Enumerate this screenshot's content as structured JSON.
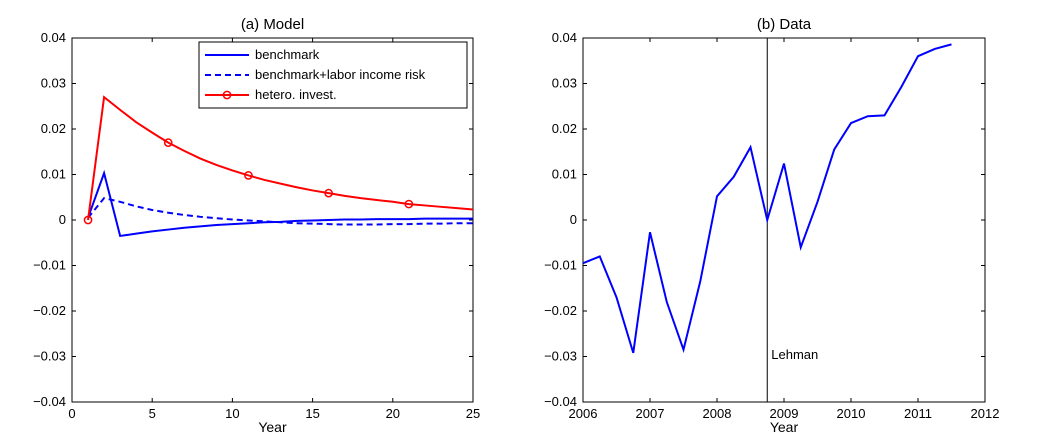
{
  "chart_data": [
    {
      "type": "line",
      "title": "(a) Model",
      "xlabel": "Year",
      "ylabel": "",
      "xlim": [
        0,
        25
      ],
      "ylim": [
        -0.04,
        0.04
      ],
      "xticks": [
        0,
        5,
        10,
        15,
        20,
        25
      ],
      "yticks": [
        -0.04,
        -0.03,
        -0.02,
        -0.01,
        0,
        0.01,
        0.02,
        0.03,
        0.04
      ],
      "xtick_labels": [
        "0",
        "5",
        "10",
        "15",
        "20",
        "25"
      ],
      "ytick_labels": [
        "−0.04",
        "−0.03",
        "−0.02",
        "−0.01",
        "0",
        "0.01",
        "0.02",
        "0.03",
        "0.04"
      ],
      "legend_position": "top-right",
      "series": [
        {
          "name": "benchmark",
          "color": "#0000ff",
          "style": "solid",
          "x": [
            1,
            2,
            3,
            4,
            5,
            6,
            7,
            8,
            9,
            10,
            11,
            12,
            13,
            14,
            15,
            16,
            17,
            18,
            19,
            20,
            21,
            22,
            23,
            24,
            25
          ],
          "y": [
            0.0005,
            0.0103,
            -0.0035,
            -0.003,
            -0.0025,
            -0.0021,
            -0.0017,
            -0.0014,
            -0.0011,
            -0.0009,
            -0.0007,
            -0.0005,
            -0.0004,
            -0.0002,
            -0.0001,
            0.0,
            0.0001,
            0.0001,
            0.0002,
            0.0002,
            0.0002,
            0.0003,
            0.0003,
            0.0003,
            0.0003
          ]
        },
        {
          "name": "benchmark+labor income risk",
          "color": "#0000ff",
          "style": "dashed",
          "x": [
            1,
            2,
            3,
            4,
            5,
            6,
            7,
            8,
            9,
            10,
            11,
            12,
            13,
            14,
            15,
            16,
            17,
            18,
            19,
            20,
            21,
            22,
            23,
            24,
            25
          ],
          "y": [
            0.0005,
            0.0048,
            0.004,
            0.003,
            0.0022,
            0.0016,
            0.0011,
            0.0007,
            0.0004,
            0.0001,
            -0.0001,
            -0.0003,
            -0.0005,
            -0.0007,
            -0.0008,
            -0.0009,
            -0.001,
            -0.001,
            -0.001,
            -0.0009,
            -0.0009,
            -0.0008,
            -0.0008,
            -0.0007,
            -0.0007
          ]
        },
        {
          "name": "hetero. invest.",
          "color": "#ff0000",
          "style": "solid",
          "marker": "circle",
          "marker_x": [
            1,
            6,
            11,
            16,
            21
          ],
          "x": [
            1,
            2,
            3,
            4,
            5,
            6,
            7,
            8,
            9,
            10,
            11,
            12,
            13,
            14,
            15,
            16,
            17,
            18,
            19,
            20,
            21,
            22,
            23,
            24,
            25
          ],
          "y": [
            0.0,
            0.027,
            0.0242,
            0.0215,
            0.0192,
            0.017,
            0.0152,
            0.0135,
            0.0121,
            0.0109,
            0.0098,
            0.0088,
            0.008,
            0.0072,
            0.0065,
            0.0059,
            0.0053,
            0.0048,
            0.0044,
            0.004,
            0.0035,
            0.0032,
            0.0029,
            0.0026,
            0.0023
          ]
        }
      ]
    },
    {
      "type": "line",
      "title": "(b) Data",
      "xlabel": "Year",
      "ylabel": "",
      "xlim": [
        2006,
        2012
      ],
      "ylim": [
        -0.04,
        0.04
      ],
      "xticks": [
        2006,
        2007,
        2008,
        2009,
        2010,
        2011,
        2012
      ],
      "yticks": [
        -0.04,
        -0.03,
        -0.02,
        -0.01,
        0,
        0.01,
        0.02,
        0.03,
        0.04
      ],
      "xtick_labels": [
        "2006",
        "2007",
        "2008",
        "2009",
        "2010",
        "2011",
        "2012"
      ],
      "ytick_labels": [
        "−0.04",
        "−0.03",
        "−0.02",
        "−0.01",
        "0",
        "0.01",
        "0.02",
        "0.03",
        "0.04"
      ],
      "annotations": [
        {
          "text": "Lehman",
          "x": 2008.75,
          "y": -0.0295,
          "vline_x": 2008.75
        }
      ],
      "series": [
        {
          "color": "#0000ff",
          "style": "solid",
          "x": [
            2006.0,
            2006.25,
            2006.5,
            2006.75,
            2007.0,
            2007.25,
            2007.5,
            2007.75,
            2008.0,
            2008.25,
            2008.5,
            2008.75,
            2009.0,
            2009.25,
            2009.5,
            2009.75,
            2010.0,
            2010.25,
            2010.5,
            2010.75,
            2011.0,
            2011.25,
            2011.5
          ],
          "y": [
            -0.0095,
            -0.008,
            -0.017,
            -0.0292,
            -0.0027,
            -0.018,
            -0.0285,
            -0.0135,
            0.0052,
            0.0095,
            0.016,
            0.0,
            0.0124,
            -0.006,
            0.004,
            0.0155,
            0.0213,
            0.0228,
            0.023,
            0.0292,
            0.036,
            0.0376,
            0.0386
          ]
        }
      ]
    }
  ]
}
